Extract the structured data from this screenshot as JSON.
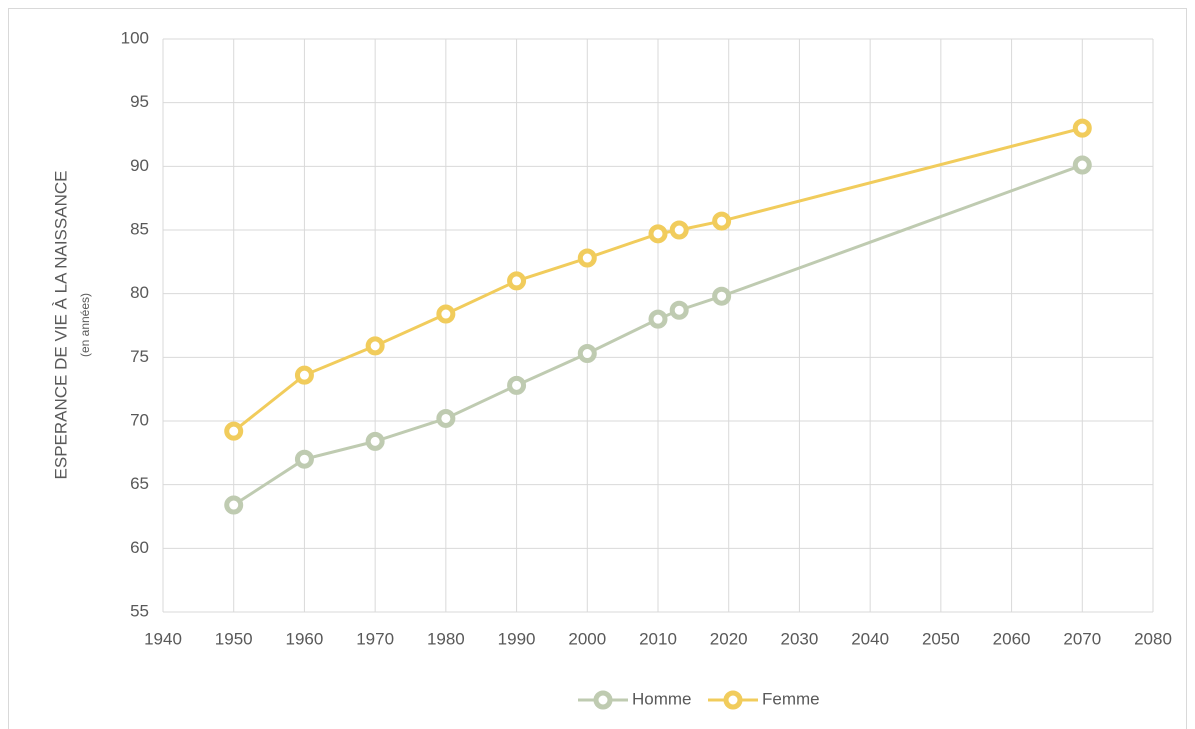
{
  "chart_data": {
    "type": "line",
    "y_label": "ESPERANCE DE VIE À LA NAISSANCE",
    "y_sublabel": "(en années)",
    "x": [
      1950,
      1960,
      1970,
      1980,
      1990,
      2000,
      2010,
      2013,
      2019,
      2070
    ],
    "series": [
      {
        "name": "Homme",
        "color": "#bfcbb1",
        "values": [
          63.4,
          67.0,
          68.4,
          70.2,
          72.8,
          75.3,
          78.0,
          78.7,
          79.8,
          90.1
        ]
      },
      {
        "name": "Femme",
        "color": "#f1cc5c",
        "values": [
          69.2,
          73.6,
          75.9,
          78.4,
          81.0,
          82.8,
          84.7,
          85.0,
          85.7,
          93.0
        ]
      }
    ],
    "xlim": [
      1940,
      2080
    ],
    "xticks": [
      1940,
      1950,
      1960,
      1970,
      1980,
      1990,
      2000,
      2010,
      2020,
      2030,
      2040,
      2050,
      2060,
      2070,
      2080
    ],
    "ylim": [
      55,
      100
    ],
    "yticks": [
      55,
      60,
      65,
      70,
      75,
      80,
      85,
      90,
      95,
      100
    ],
    "grid": true,
    "legend": "bottom"
  }
}
